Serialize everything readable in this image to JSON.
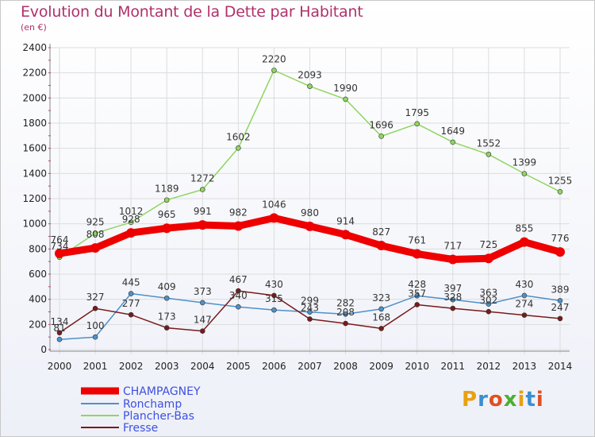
{
  "title": "Evolution du Montant de la Dette par Habitant",
  "subtitle": "(en €)",
  "logo": "Proxiti",
  "colors": {
    "title": "#b0306a",
    "champagney": "#ee0000",
    "ronchamp": "#4f90c8",
    "plancher_bas": "#8ed660",
    "fresse": "#7a1a1a",
    "legend_text": "#3c50e0"
  },
  "chart_data": {
    "type": "line",
    "title": "Evolution du Montant de la Dette par Habitant",
    "ylabel": "(en €)",
    "x": [
      "2000",
      "2001",
      "2002",
      "2003",
      "2004",
      "2005",
      "2006",
      "2007",
      "2008",
      "2009",
      "2010",
      "2011",
      "2012",
      "2013",
      "2014"
    ],
    "ylim": [
      0,
      2400
    ],
    "yticks": [
      "0",
      "200",
      "400",
      "600",
      "800",
      "1000",
      "1200",
      "1400",
      "1600",
      "1800",
      "2000",
      "2200",
      "2400"
    ],
    "grid": true,
    "legend_position": "bottom-left",
    "series": [
      {
        "name": "CHAMPAGNEY",
        "color": "#ee0000",
        "values": [
          764,
          808,
          928,
          965,
          991,
          982,
          1046,
          980,
          914,
          827,
          761,
          717,
          725,
          855,
          776
        ]
      },
      {
        "name": "Ronchamp",
        "color": "#4f90c8",
        "values": [
          81,
          100,
          445,
          409,
          373,
          340,
          315,
          299,
          282,
          323,
          428,
          397,
          363,
          430,
          389
        ]
      },
      {
        "name": "Plancher-Bas",
        "color": "#8ed660",
        "values": [
          734,
          925,
          1012,
          1189,
          1272,
          1602,
          2220,
          2093,
          1990,
          1696,
          1795,
          1649,
          1552,
          1399,
          1255
        ]
      },
      {
        "name": "Fresse",
        "color": "#7a1a1a",
        "values": [
          134,
          327,
          277,
          173,
          147,
          467,
          430,
          243,
          208,
          168,
          357,
          328,
          302,
          274,
          247
        ]
      }
    ]
  }
}
